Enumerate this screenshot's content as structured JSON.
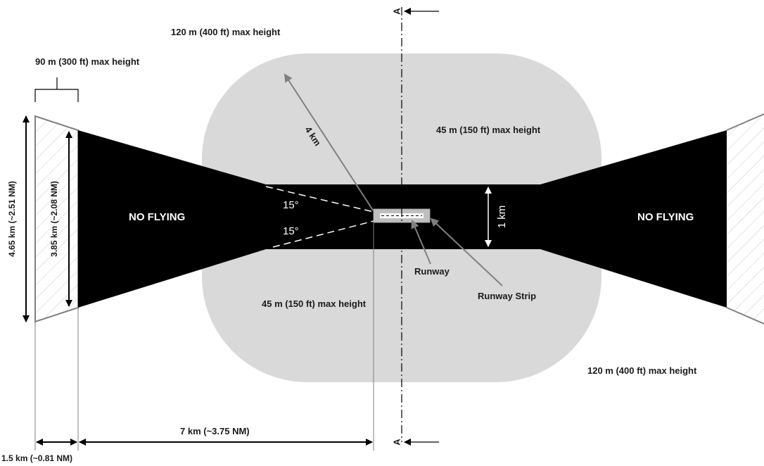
{
  "labels": {
    "outer_top": "120 m (400 ft) max height",
    "outer_bottom_right": "120 m (400 ft) max height",
    "approach_height": "90 m (300 ft) max height",
    "inner_top": "45 m (150 ft) max height",
    "inner_bottom": "45 m (150 ft) max height",
    "no_flying_left": "NO FLYING",
    "no_flying_right": "NO FLYING",
    "angle_top": "15°",
    "angle_bottom": "15°",
    "radius": "4 km",
    "corridor_width": "1 km",
    "runway": "Runway",
    "runway_strip": "Runway Strip",
    "outer_width": "4.65 km (~2.51 NM)",
    "inner_width": "3.85 km (~2.08 NM)",
    "approach_length": "7 km (~3.75 NM)",
    "splay_length": "1.5 km (~0.81 NM)",
    "section_top": "A",
    "section_bottom": "A"
  },
  "colors": {
    "no_fly": "#000000",
    "restricted_zone": "#d9d9d9",
    "strip": "#bfbfbf",
    "line": "#808080",
    "text": "#1a1a1a"
  }
}
